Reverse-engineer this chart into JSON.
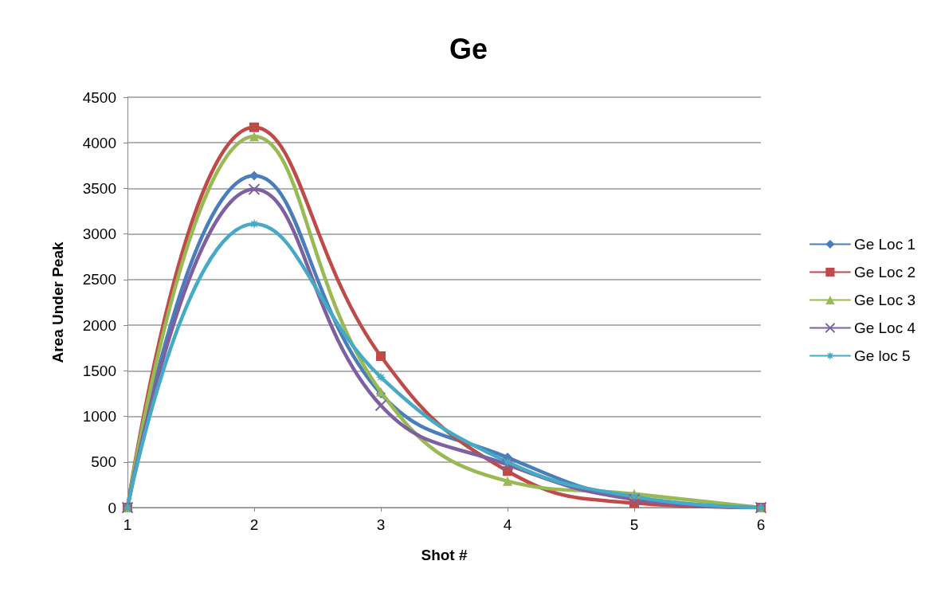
{
  "chart_data": {
    "type": "line",
    "title": "Ge",
    "xlabel": "Shot #",
    "ylabel": "Area Under Peak",
    "x": [
      1,
      2,
      3,
      4,
      5,
      6
    ],
    "xlim": [
      1,
      6
    ],
    "xticks": [
      1,
      2,
      3,
      4,
      5,
      6
    ],
    "ylim": [
      0,
      4500
    ],
    "yticks": [
      0,
      500,
      1000,
      1500,
      2000,
      2500,
      3000,
      3500,
      4000,
      4500
    ],
    "grid": "y",
    "legend": "right",
    "line_style": "solid",
    "series": [
      {
        "name": "Ge Loc 1",
        "color": "#4a7ebb",
        "marker": "diamond",
        "values": [
          0,
          3640,
          1250,
          550,
          100,
          0
        ]
      },
      {
        "name": "Ge Loc 2",
        "color": "#be4b48",
        "marker": "square",
        "values": [
          0,
          4170,
          1660,
          400,
          50,
          0
        ]
      },
      {
        "name": "Ge Loc 3",
        "color": "#98b954",
        "marker": "triangle",
        "values": [
          0,
          4070,
          1270,
          290,
          150,
          0
        ]
      },
      {
        "name": "Ge Loc 4",
        "color": "#7d60a0",
        "marker": "cross",
        "values": [
          0,
          3490,
          1120,
          470,
          90,
          0
        ]
      },
      {
        "name": "Ge loc 5",
        "color": "#46aac5",
        "marker": "star",
        "values": [
          0,
          3110,
          1430,
          500,
          120,
          0
        ]
      }
    ]
  }
}
